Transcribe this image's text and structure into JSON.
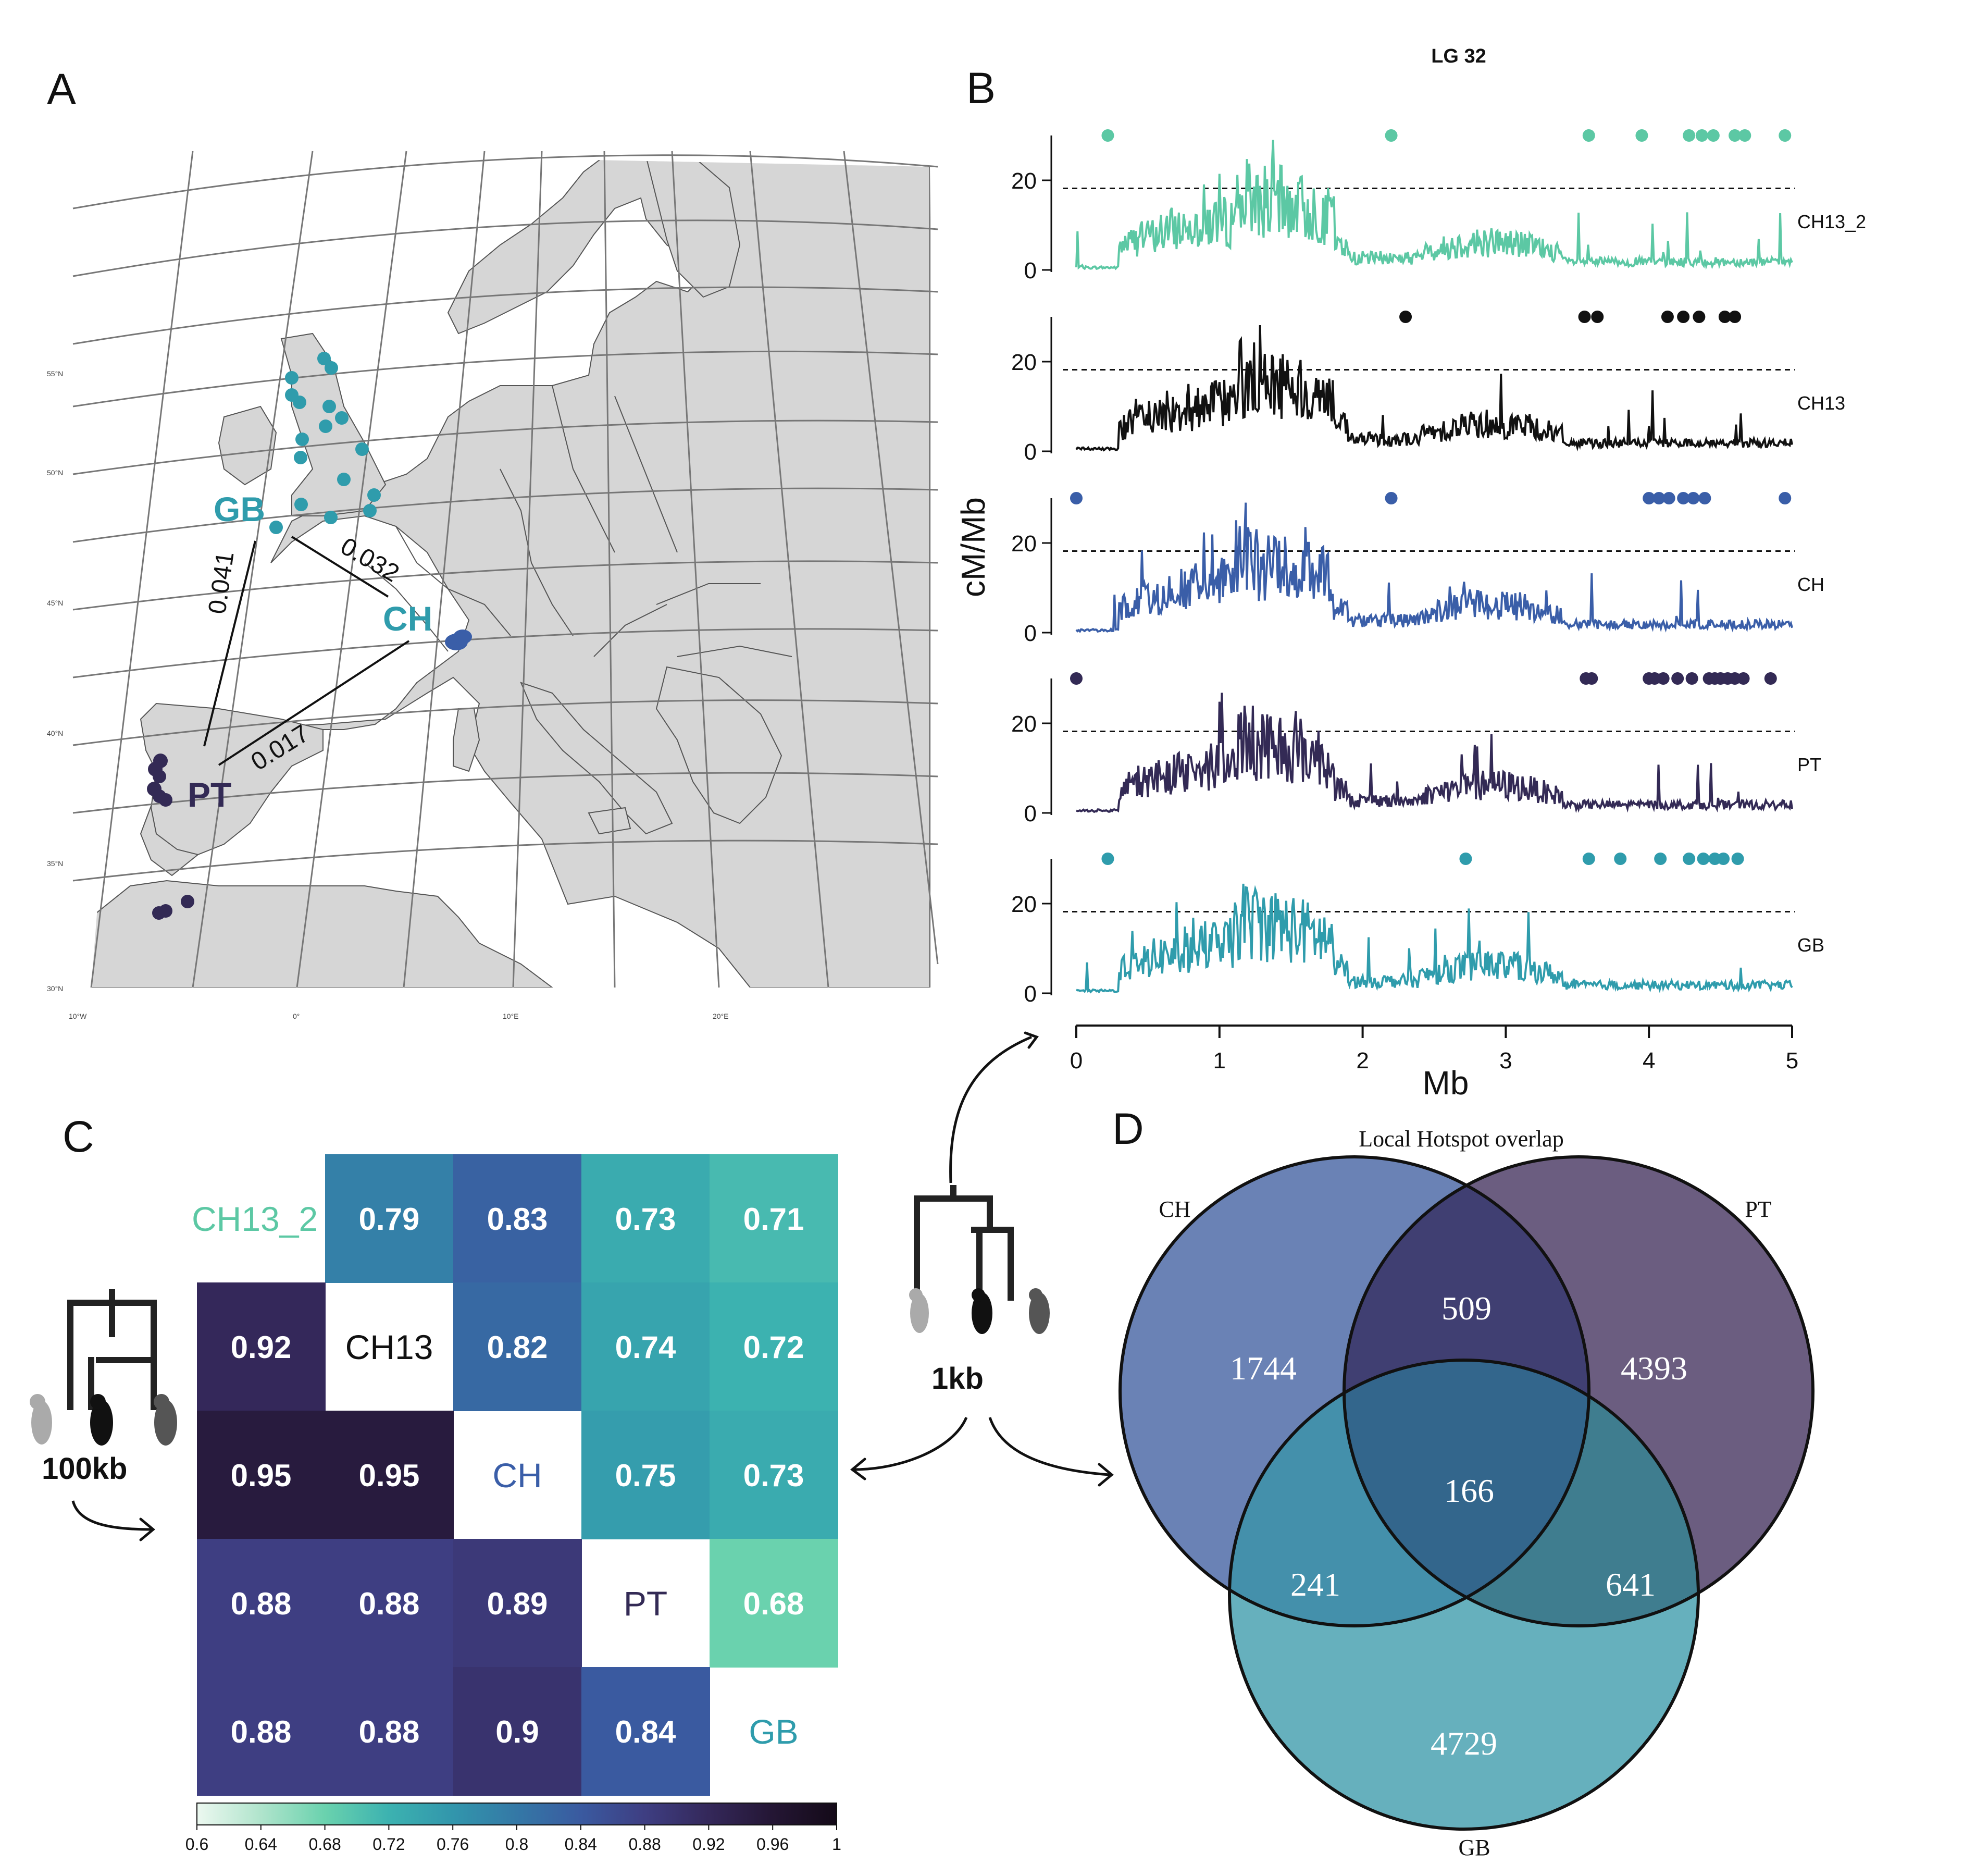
{
  "panel_labels": {
    "a": "A",
    "b": "B",
    "c": "C",
    "d": "D"
  },
  "colors": {
    "CH13_2": "#5cc8a4",
    "CH13": "#111111",
    "CH": "#3a5ea8",
    "PT": "#332a55",
    "GB": "#2f9cac",
    "land": "#d6d6d6",
    "venn_CH": "#6a82b5",
    "venn_PT": "#6b5d80",
    "venn_GB": "#66b0bd"
  },
  "map": {
    "pop_labels": [
      "GB",
      "CH",
      "PT"
    ],
    "distances": [
      "0.041",
      "0.032",
      "0.017"
    ],
    "lat_labels": [
      "55°N",
      "50°N",
      "45°N",
      "40°N",
      "35°N",
      "30°N"
    ],
    "lon_labels": [
      "10°W",
      "0°",
      "10°E",
      "20°E"
    ]
  },
  "chart_data": [
    {
      "type": "line",
      "panel": "B",
      "title": "LG 32",
      "xlabel": "Mb",
      "ylabel": "cM/Mb",
      "xlim": [
        0,
        5
      ],
      "ylim": [
        0,
        30
      ],
      "x_ticks": [
        "0",
        "1",
        "2",
        "3",
        "4",
        "5"
      ],
      "y_ticks": [
        "0",
        "20"
      ],
      "threshold": 18.2,
      "series": [
        {
          "name": "CH13_2",
          "hotspots": [
            0.22,
            2.2,
            3.58,
            3.95,
            4.28,
            4.37,
            4.45,
            4.6,
            4.67,
            4.95
          ]
        },
        {
          "name": "CH13",
          "hotspots": [
            2.3,
            3.55,
            3.64,
            4.13,
            4.24,
            4.35,
            4.53,
            4.6
          ]
        },
        {
          "name": "CH",
          "hotspots": [
            0.0,
            2.2,
            4.0,
            4.07,
            4.14,
            4.24,
            4.31,
            4.39,
            4.95
          ]
        },
        {
          "name": "PT",
          "hotspots": [
            0.0,
            3.56,
            3.6,
            4.0,
            4.04,
            4.1,
            4.2,
            4.3,
            4.42,
            4.46,
            4.5,
            4.55,
            4.6,
            4.66,
            4.85
          ]
        },
        {
          "name": "GB",
          "hotspots": [
            0.22,
            2.72,
            3.58,
            3.8,
            4.08,
            4.28,
            4.38,
            4.46,
            4.52,
            4.62
          ]
        }
      ]
    },
    {
      "type": "heatmap",
      "panel": "C",
      "labels": [
        "CH13_2",
        "CH13",
        "CH",
        "PT",
        "GB"
      ],
      "matrix": [
        [
          null,
          0.79,
          0.83,
          0.73,
          0.71
        ],
        [
          0.92,
          null,
          0.82,
          0.74,
          0.72
        ],
        [
          0.95,
          0.95,
          null,
          0.75,
          0.73
        ],
        [
          0.88,
          0.88,
          0.89,
          null,
          0.68
        ],
        [
          0.88,
          0.88,
          0.9,
          0.84,
          null
        ]
      ],
      "colorbar_ticks": [
        "0.6",
        "0.64",
        "0.68",
        "0.72",
        "0.76",
        "0.8",
        "0.84",
        "0.88",
        "0.92",
        "0.96",
        "1"
      ],
      "scale_lower": "100kb",
      "scale_upper": "1kb"
    },
    {
      "type": "venn",
      "panel": "D",
      "title": "Local Hotspot overlap",
      "sets": [
        "CH",
        "PT",
        "GB"
      ],
      "regions": {
        "CH_only": 1744,
        "PT_only": 4393,
        "GB_only": 4729,
        "CH_PT": 509,
        "CH_GB": 241,
        "PT_GB": 641,
        "CH_PT_GB": 166
      }
    }
  ]
}
